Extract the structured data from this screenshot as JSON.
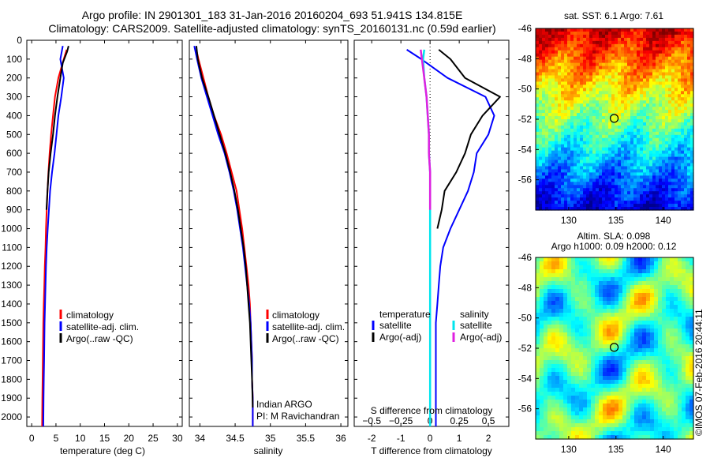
{
  "header": {
    "line1": "Argo profile: IN 2901301_183 31-Jan-2016 20160204_693 51.941S 134.815E",
    "line2": "Climatology: CARS2009. Satellite-adjusted climatology: synTS_20160131.nc (0.59d earlier)"
  },
  "colors": {
    "climatology": "#ff0000",
    "satellite": "#0000ff",
    "argo": "#000000",
    "salinity_satellite": "#00e5ee",
    "salinity_argo": "#e020e0"
  },
  "legend_profile": {
    "climatology": "climatology",
    "satellite": "satellite-adj. clim.",
    "argo": "Argo(..raw -QC)"
  },
  "diff_legend": {
    "temperature_title": "temperature",
    "salinity_title": "salinity",
    "satellite": "satellite",
    "argo": "Argo(-adj)"
  },
  "salinity_note": {
    "line1": "Indian ARGO",
    "line2": "PI: M Ravichandran"
  },
  "map_top_title": "sat. SST: 6.1 Argo: 7.61",
  "map_bottom_title1": "Altim. SLA: 0.098",
  "map_bottom_title2": "Argo h1000: 0.09 h2000: 0.12",
  "credit": "©IMOS 07-Feb-2016 20:44:11",
  "chart_data": [
    {
      "type": "line",
      "xlabel": "temperature (deg C)",
      "ylim": [
        2050,
        0
      ],
      "xlim": [
        -1,
        31
      ],
      "xticks": [
        0,
        5,
        10,
        15,
        20,
        25,
        30
      ],
      "yticks": [
        0,
        100,
        200,
        300,
        400,
        500,
        600,
        700,
        800,
        900,
        1000,
        1100,
        1200,
        1300,
        1400,
        1500,
        1600,
        1700,
        1800,
        1900,
        2000
      ],
      "series": [
        {
          "name": "climatology",
          "x": [
            7.2,
            6.6,
            5.5,
            4.8,
            4.4,
            4.0,
            3.7,
            3.45,
            3.25,
            3.1,
            2.95,
            2.85,
            2.7,
            2.6,
            2.5,
            2.4,
            2.35,
            2.3,
            2.25,
            2.2,
            2.15
          ],
          "y": [
            50,
            100,
            200,
            300,
            400,
            500,
            600,
            700,
            800,
            900,
            1000,
            1100,
            1200,
            1300,
            1400,
            1500,
            1600,
            1700,
            1800,
            1900,
            2050
          ]
        },
        {
          "name": "satellite-adj. clim.",
          "x": [
            6.4,
            5.9,
            6.6,
            6.1,
            5.5,
            5.1,
            4.7,
            4.2,
            3.8,
            3.55,
            3.3,
            3.1,
            2.95,
            2.85,
            2.75,
            2.65,
            2.6,
            2.55,
            2.5,
            2.45,
            2.4
          ],
          "y": [
            30,
            100,
            200,
            300,
            400,
            500,
            600,
            700,
            800,
            900,
            1000,
            1100,
            1200,
            1300,
            1400,
            1500,
            1600,
            1700,
            1800,
            1900,
            2050
          ]
        },
        {
          "name": "Argo(..raw -QC)",
          "x": [
            7.6,
            7.3,
            6.4,
            5.9,
            5.3,
            4.8,
            4.4,
            3.9,
            3.5,
            3.25,
            3.05
          ],
          "y": [
            30,
            60,
            120,
            200,
            300,
            400,
            500,
            600,
            700,
            800,
            900
          ]
        }
      ]
    },
    {
      "type": "line",
      "xlabel": "salinity",
      "ylim": [
        2050,
        0
      ],
      "xlim": [
        33.85,
        36.1
      ],
      "xticks": [
        34,
        34.5,
        35,
        35.5,
        36
      ],
      "series": [
        {
          "name": "climatology",
          "x": [
            33.95,
            33.98,
            34.05,
            34.12,
            34.2,
            34.3,
            34.38,
            34.45,
            34.52,
            34.56,
            34.6,
            34.63,
            34.66,
            34.69,
            34.71,
            34.72,
            34.73,
            34.74,
            34.74,
            34.75,
            34.75
          ],
          "y": [
            50,
            100,
            200,
            300,
            400,
            500,
            600,
            700,
            800,
            900,
            1000,
            1100,
            1200,
            1300,
            1400,
            1500,
            1600,
            1700,
            1800,
            1900,
            2050
          ]
        },
        {
          "name": "satellite-adj. clim.",
          "x": [
            33.92,
            33.96,
            34.02,
            34.1,
            34.18,
            34.26,
            34.35,
            34.42,
            34.48,
            34.53,
            34.57,
            34.61,
            34.64,
            34.67,
            34.7,
            34.72,
            34.73,
            34.74,
            34.74,
            34.75,
            34.75
          ],
          "y": [
            30,
            100,
            200,
            300,
            400,
            500,
            600,
            700,
            800,
            900,
            1000,
            1100,
            1200,
            1300,
            1400,
            1500,
            1600,
            1700,
            1800,
            1900,
            2050
          ]
        },
        {
          "name": "Argo(..raw -QC)",
          "x": [
            33.95,
            33.97,
            34.03,
            34.12,
            34.2,
            34.28,
            34.36,
            34.43,
            34.49,
            34.54,
            34.58,
            34.62,
            34.65,
            34.67,
            34.69,
            34.71,
            34.72,
            34.73,
            34.74,
            34.75
          ],
          "y": [
            30,
            100,
            200,
            300,
            400,
            500,
            600,
            700,
            800,
            900,
            1000,
            1100,
            1200,
            1300,
            1400,
            1500,
            1600,
            1700,
            1800,
            1950
          ]
        }
      ]
    },
    {
      "type": "line",
      "xlabel": "T difference from climatology",
      "xlabel2": "S difference from climatology",
      "ylim": [
        2050,
        0
      ],
      "xlim": [
        -2.6,
        2.7
      ],
      "xticks": [
        -2,
        -1,
        0,
        1,
        2
      ],
      "sticks": [
        -0.5,
        -0.25,
        0,
        0.25,
        0.5
      ],
      "sticklabels": [
        "−0.5",
        "−0.25",
        "0",
        "0.25",
        "0.5"
      ],
      "series": [
        {
          "name": "temperature satellite",
          "x": [
            -0.8,
            -0.3,
            0.6,
            1.9,
            2.2,
            2.0,
            1.6,
            1.5,
            1.3,
            1.0,
            0.7,
            0.45,
            0.35,
            0.3,
            0.25,
            0.2,
            0.2,
            0.2,
            0.2,
            0.2,
            0.2
          ],
          "y": [
            50,
            100,
            200,
            300,
            400,
            500,
            600,
            700,
            800,
            900,
            1000,
            1100,
            1200,
            1300,
            1400,
            1500,
            1600,
            1700,
            1800,
            1900,
            2050
          ]
        },
        {
          "name": "temperature Argo(-adj)",
          "x": [
            0.3,
            0.7,
            1.2,
            2.4,
            1.8,
            1.4,
            1.2,
            0.9,
            0.5,
            0.4,
            0.25
          ],
          "y": [
            50,
            100,
            200,
            300,
            400,
            500,
            600,
            700,
            800,
            900,
            1000
          ]
        },
        {
          "name": "salinity satellite",
          "x": [
            -0.05,
            -0.06,
            -0.05,
            -0.03,
            -0.02,
            -0.01,
            -0.01,
            0,
            0,
            0,
            0,
            0,
            0,
            0,
            0,
            0,
            0,
            0,
            0,
            0,
            0
          ],
          "y": [
            50,
            100,
            200,
            300,
            400,
            500,
            600,
            700,
            800,
            900,
            1000,
            1100,
            1200,
            1300,
            1400,
            1500,
            1600,
            1700,
            1800,
            1900,
            2050
          ]
        },
        {
          "name": "salinity Argo(-adj)",
          "x": [
            -0.08,
            -0.07,
            -0.05,
            -0.03,
            -0.02,
            -0.01,
            -0.01,
            0,
            0,
            0
          ],
          "y": [
            50,
            100,
            200,
            300,
            400,
            500,
            600,
            700,
            800,
            900
          ]
        }
      ]
    },
    {
      "type": "heatmap",
      "title": "sat. SST: 6.1 Argo: 7.61",
      "xlim": [
        126.5,
        143.2
      ],
      "ylim": [
        -58,
        -46
      ],
      "xticks": [
        130,
        135,
        140
      ],
      "yticks": [
        -46,
        -48,
        -50,
        -52,
        -54,
        -56
      ],
      "marker": {
        "lon": 134.815,
        "lat": -51.941
      }
    },
    {
      "type": "heatmap",
      "title": "Altim. SLA: 0.098",
      "subtitle": "Argo h1000: 0.09 h2000: 0.12",
      "xlim": [
        126.5,
        143.2
      ],
      "ylim": [
        -58,
        -46
      ],
      "xticks": [
        130,
        135,
        140
      ],
      "yticks": [
        -46,
        -48,
        -50,
        -52,
        -54,
        -56
      ],
      "marker": {
        "lon": 134.815,
        "lat": -51.941
      }
    }
  ]
}
